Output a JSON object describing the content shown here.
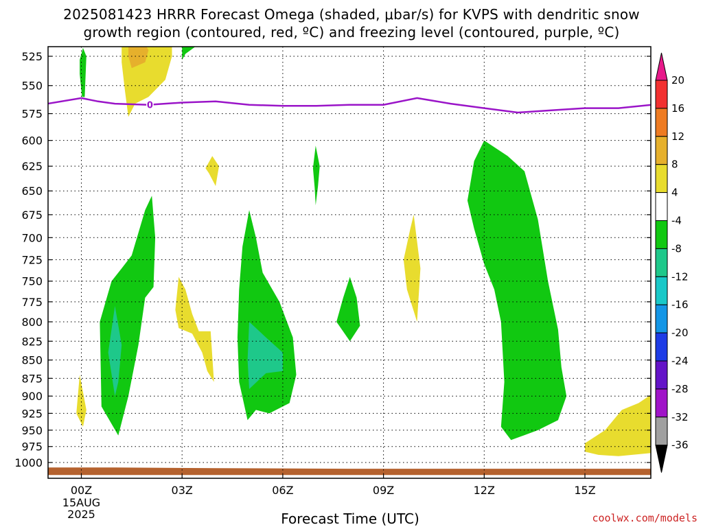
{
  "title_line1": "2025081423 HRRR Forecast Omega (shaded, μbar/s) for KVPS with dendritic snow",
  "title_line2": "growth region (contoured, red, ºC) and freezing level (contoured, purple, ºC)",
  "x_axis_label": "Forecast Time (UTC)",
  "credit": "coolwx.com/models",
  "chart_data": {
    "type": "heatmap",
    "title": "2025081423 HRRR Forecast Omega (shaded, μbar/s) for KVPS with dendritic snow growth region (contoured, red, ºC) and freezing level (contoured, purple, ºC)",
    "xlabel": "Forecast Time (UTC)",
    "ylabel": "",
    "x_ticks": [
      {
        "hour": 0,
        "label": "00Z",
        "sub": [
          "15AUG",
          "2025"
        ]
      },
      {
        "hour": 3,
        "label": "03Z"
      },
      {
        "hour": 6,
        "label": "06Z"
      },
      {
        "hour": 9,
        "label": "09Z"
      },
      {
        "hour": 12,
        "label": "12Z"
      },
      {
        "hour": 15,
        "label": "15Z"
      }
    ],
    "xlim": [
      -1,
      17
    ],
    "y_ticks": [
      525,
      550,
      575,
      600,
      625,
      650,
      675,
      700,
      725,
      750,
      775,
      800,
      825,
      850,
      875,
      900,
      925,
      950,
      975,
      1000
    ],
    "ylim": [
      515,
      1020
    ],
    "y_scale": "log-pressure",
    "grid": true,
    "colorbar": {
      "labels": [
        "20",
        "16",
        "12",
        "8",
        "4",
        "-4",
        "-8",
        "-12",
        "-16",
        "-20",
        "-24",
        "-28",
        "-32",
        "-36"
      ],
      "colors": [
        "#e8198a",
        "#f23030",
        "#ee7b22",
        "#e6b02c",
        "#e8dc2e",
        "#ffffff",
        "#11c811",
        "#1ec88a",
        "#19c8c8",
        "#1496e6",
        "#1e3ce6",
        "#6414c8",
        "#a014c8",
        "#a0a0a0",
        "#000000"
      ]
    },
    "freezing_level": {
      "label": "0",
      "color": "#9a14c8",
      "points": [
        [
          -1,
          566
        ],
        [
          0,
          561
        ],
        [
          0.5,
          564
        ],
        [
          1,
          566
        ],
        [
          2,
          567
        ],
        [
          3,
          565
        ],
        [
          4,
          564
        ],
        [
          5,
          567
        ],
        [
          6,
          568
        ],
        [
          7,
          568
        ],
        [
          8,
          567
        ],
        [
          9,
          567
        ],
        [
          10,
          561
        ],
        [
          11,
          566
        ],
        [
          12,
          570
        ],
        [
          13,
          574
        ],
        [
          14,
          572
        ],
        [
          15,
          570
        ],
        [
          16,
          570
        ],
        [
          17,
          567
        ]
      ]
    },
    "omega_regions": [
      {
        "value": "-8",
        "color": "#11c811",
        "polygon": [
          [
            -0.05,
            528
          ],
          [
            0.05,
            518
          ],
          [
            0.15,
            525
          ],
          [
            0.1,
            560
          ],
          [
            0.02,
            560
          ],
          [
            -0.05,
            540
          ]
        ]
      },
      {
        "value": "4",
        "color": "#e8dc2e",
        "polygon": [
          [
            1.2,
            515
          ],
          [
            2.7,
            515
          ],
          [
            2.7,
            525
          ],
          [
            2.5,
            545
          ],
          [
            2,
            560
          ],
          [
            1.6,
            566
          ],
          [
            1.4,
            578
          ],
          [
            1.3,
            555
          ],
          [
            1.2,
            530
          ]
        ]
      },
      {
        "value": "8",
        "color": "#e6b02c",
        "polygon": [
          [
            1.4,
            515
          ],
          [
            1.9,
            515
          ],
          [
            2,
            520
          ],
          [
            1.9,
            530
          ],
          [
            1.5,
            535
          ],
          [
            1.4,
            525
          ]
        ]
      },
      {
        "value": "-8",
        "color": "#11c811",
        "polygon": [
          [
            3,
            515
          ],
          [
            3.5,
            515
          ],
          [
            3.1,
            523
          ],
          [
            3,
            528
          ]
        ]
      },
      {
        "value": "4",
        "color": "#e8dc2e",
        "polygon": [
          [
            3.9,
            615
          ],
          [
            4.1,
            625
          ],
          [
            4,
            645
          ],
          [
            3.8,
            632
          ],
          [
            3.7,
            627
          ]
        ]
      },
      {
        "value": "-8",
        "color": "#11c811",
        "polygon": [
          [
            6.9,
            627
          ],
          [
            6.98,
            605
          ],
          [
            7.1,
            625
          ],
          [
            7.05,
            645
          ],
          [
            6.98,
            665
          ],
          [
            6.95,
            647
          ]
        ]
      },
      {
        "value": "-8",
        "color": "#11c811",
        "polygon": [
          [
            1.5,
            720
          ],
          [
            1.9,
            670
          ],
          [
            2.1,
            655
          ],
          [
            2.2,
            700
          ],
          [
            2.15,
            757
          ],
          [
            1.9,
            770
          ],
          [
            1.7,
            830
          ],
          [
            1.4,
            900
          ],
          [
            1.1,
            958
          ],
          [
            0.6,
            915
          ],
          [
            0.55,
            800
          ],
          [
            0.9,
            750
          ],
          [
            1.2,
            735
          ]
        ]
      },
      {
        "value": "-12",
        "color": "#1ec88a",
        "polygon": [
          [
            1,
            780
          ],
          [
            1.2,
            830
          ],
          [
            1.1,
            880
          ],
          [
            1,
            900
          ],
          [
            0.8,
            840
          ]
        ]
      },
      {
        "value": "4",
        "color": "#e8dc2e",
        "polygon": [
          [
            -0.05,
            870
          ],
          [
            0.15,
            920
          ],
          [
            0.05,
            945
          ],
          [
            -0.15,
            925
          ]
        ]
      },
      {
        "value": "4",
        "color": "#e8dc2e",
        "polygon": [
          [
            2.9,
            745
          ],
          [
            3.1,
            760
          ],
          [
            3.3,
            790
          ],
          [
            3.5,
            812
          ],
          [
            3.85,
            812
          ],
          [
            3.95,
            880
          ],
          [
            3.75,
            865
          ],
          [
            3.6,
            840
          ],
          [
            3.3,
            815
          ],
          [
            2.9,
            808
          ],
          [
            2.8,
            785
          ]
        ]
      },
      {
        "value": "-8",
        "color": "#11c811",
        "polygon": [
          [
            4.8,
            710
          ],
          [
            5,
            670
          ],
          [
            5.2,
            700
          ],
          [
            5.4,
            740
          ],
          [
            5.9,
            775
          ],
          [
            6.3,
            820
          ],
          [
            6.4,
            870
          ],
          [
            6.2,
            910
          ],
          [
            5.6,
            925
          ],
          [
            5.2,
            920
          ],
          [
            4.95,
            935
          ],
          [
            4.7,
            880
          ],
          [
            4.65,
            820
          ],
          [
            4.7,
            760
          ]
        ]
      },
      {
        "value": "-12",
        "color": "#1ec88a",
        "polygon": [
          [
            5,
            800
          ],
          [
            5.5,
            820
          ],
          [
            6,
            840
          ],
          [
            6,
            865
          ],
          [
            5.5,
            868
          ],
          [
            5,
            890
          ],
          [
            4.95,
            850
          ]
        ]
      },
      {
        "value": "-8",
        "color": "#11c811",
        "polygon": [
          [
            8,
            745
          ],
          [
            8.2,
            770
          ],
          [
            8.3,
            805
          ],
          [
            8,
            825
          ],
          [
            7.6,
            800
          ],
          [
            7.8,
            770
          ]
        ]
      },
      {
        "value": "4",
        "color": "#e8dc2e",
        "polygon": [
          [
            9.8,
            690
          ],
          [
            9.9,
            675
          ],
          [
            10.1,
            735
          ],
          [
            10,
            800
          ],
          [
            9.7,
            760
          ],
          [
            9.6,
            725
          ]
        ]
      },
      {
        "value": "-8",
        "color": "#11c811",
        "polygon": [
          [
            11.7,
            620
          ],
          [
            12,
            600
          ],
          [
            12.7,
            615
          ],
          [
            13.2,
            630
          ],
          [
            13.6,
            680
          ],
          [
            13.9,
            750
          ],
          [
            14.2,
            810
          ],
          [
            14.3,
            860
          ],
          [
            14.45,
            900
          ],
          [
            14.2,
            935
          ],
          [
            13.6,
            950
          ],
          [
            12.8,
            965
          ],
          [
            12.5,
            945
          ],
          [
            12.6,
            880
          ],
          [
            12.5,
            800
          ],
          [
            12.3,
            760
          ],
          [
            12,
            730
          ],
          [
            11.7,
            690
          ],
          [
            11.5,
            660
          ]
        ]
      },
      {
        "value": "4",
        "color": "#e8dc2e",
        "polygon": [
          [
            15,
            970
          ],
          [
            15.6,
            950
          ],
          [
            16.1,
            920
          ],
          [
            16.6,
            910
          ],
          [
            17,
            897
          ],
          [
            17,
            985
          ],
          [
            16,
            990
          ],
          [
            15.4,
            988
          ],
          [
            15,
            983
          ]
        ]
      },
      {
        "value": "-4",
        "color": "#b5622e",
        "polygon": [
          [
            -1,
            1008
          ],
          [
            1,
            1008
          ],
          [
            4,
            1009
          ],
          [
            8,
            1010
          ],
          [
            11,
            1010
          ],
          [
            13,
            1010
          ],
          [
            17,
            1010
          ],
          [
            17,
            1020
          ],
          [
            -1,
            1020
          ]
        ]
      }
    ]
  }
}
